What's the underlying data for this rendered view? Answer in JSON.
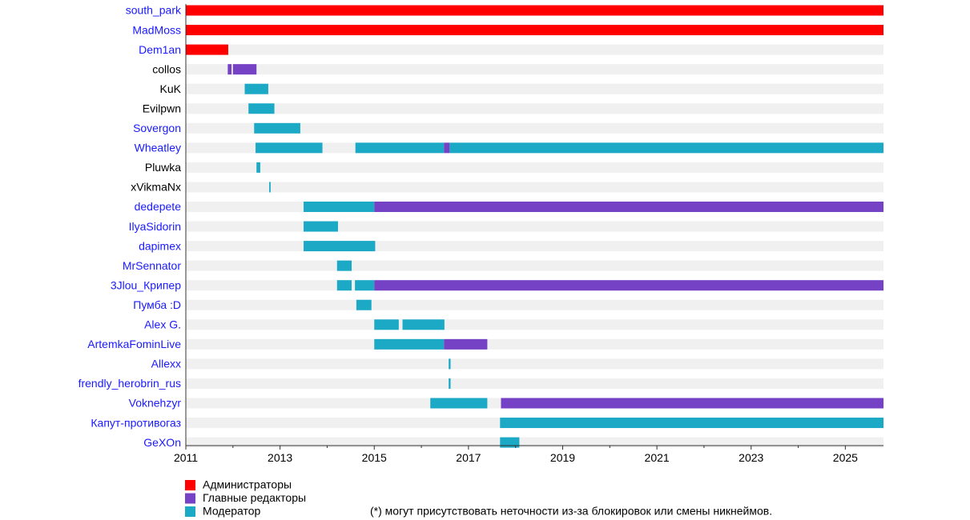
{
  "chart_data": {
    "type": "timeline",
    "xlim": [
      2011,
      2025.81
    ],
    "x_ticks": [
      "2011",
      "2013",
      "2015",
      "2017",
      "2019",
      "2021",
      "2023",
      "2025"
    ],
    "categories_colors": {
      "admin": "#ff0000",
      "chief_editor": "#7542c6",
      "moderator": "#1ba9c6"
    },
    "label_colors": {
      "link": "#1a1aff",
      "plain": "#000000"
    },
    "legend": [
      {
        "key": "admin",
        "label": "Администраторы"
      },
      {
        "key": "chief_editor",
        "label": "Главные редакторы"
      },
      {
        "key": "moderator",
        "label": "Модератор"
      }
    ],
    "footnote": "(*) могут присутствовать неточности из-за блокировок или смены никнеймов.",
    "rows": [
      {
        "name": "south_park",
        "link": true,
        "segments": [
          [
            "admin",
            2011.0,
            2025.81
          ]
        ]
      },
      {
        "name": "MadMoss",
        "link": true,
        "segments": [
          [
            "admin",
            2011.0,
            2025.81
          ]
        ]
      },
      {
        "name": "Dem1an",
        "link": true,
        "segments": [
          [
            "admin",
            2011.0,
            2011.9
          ]
        ]
      },
      {
        "name": "collos",
        "link": false,
        "segments": [
          [
            "chief_editor",
            2011.89,
            2011.97
          ],
          [
            "chief_editor",
            2012.0,
            2012.5
          ]
        ]
      },
      {
        "name": "KuK",
        "link": false,
        "segments": [
          [
            "moderator",
            2012.25,
            2012.75
          ]
        ]
      },
      {
        "name": "Evilpwn",
        "link": false,
        "segments": [
          [
            "moderator",
            2012.33,
            2012.88
          ]
        ]
      },
      {
        "name": "Sovergon",
        "link": true,
        "segments": [
          [
            "moderator",
            2012.45,
            2013.43
          ]
        ]
      },
      {
        "name": "Wheatley",
        "link": true,
        "segments": [
          [
            "moderator",
            2012.48,
            2013.9
          ],
          [
            "moderator",
            2014.6,
            2016.48
          ],
          [
            "chief_editor",
            2016.48,
            2016.6
          ],
          [
            "moderator",
            2016.6,
            2025.81
          ]
        ]
      },
      {
        "name": "Pluwka",
        "link": false,
        "segments": [
          [
            "moderator",
            2012.5,
            2012.58
          ]
        ]
      },
      {
        "name": "xVikmaNx",
        "link": false,
        "segments": [
          [
            "moderator",
            2012.77,
            2012.8
          ]
        ]
      },
      {
        "name": "dedepete",
        "link": true,
        "segments": [
          [
            "moderator",
            2013.5,
            2015.0
          ],
          [
            "chief_editor",
            2015.0,
            2025.81
          ]
        ]
      },
      {
        "name": "IlyaSidorin",
        "link": true,
        "segments": [
          [
            "moderator",
            2013.5,
            2014.23
          ]
        ]
      },
      {
        "name": "dapimex",
        "link": true,
        "segments": [
          [
            "moderator",
            2013.5,
            2015.02
          ]
        ]
      },
      {
        "name": "MrSennator",
        "link": true,
        "segments": [
          [
            "moderator",
            2014.21,
            2014.52
          ]
        ]
      },
      {
        "name": "3Jlou_Крипер",
        "link": true,
        "segments": [
          [
            "moderator",
            2014.21,
            2014.52
          ],
          [
            "moderator",
            2014.59,
            2015.0
          ],
          [
            "chief_editor",
            2015.0,
            2025.81
          ]
        ]
      },
      {
        "name": "Пумба :D",
        "link": true,
        "segments": [
          [
            "moderator",
            2014.62,
            2014.94
          ]
        ]
      },
      {
        "name": "Alex G.",
        "link": true,
        "segments": [
          [
            "moderator",
            2015.0,
            2015.52
          ],
          [
            "moderator",
            2015.6,
            2016.49
          ]
        ]
      },
      {
        "name": "ArtemkaFominLive",
        "link": true,
        "segments": [
          [
            "moderator",
            2015.0,
            2016.48
          ],
          [
            "chief_editor",
            2016.48,
            2017.4
          ]
        ]
      },
      {
        "name": "Allexx",
        "link": true,
        "segments": [
          [
            "moderator",
            2016.58,
            2016.62
          ]
        ]
      },
      {
        "name": "frendly_herobrin_rus",
        "link": true,
        "segments": [
          [
            "moderator",
            2016.58,
            2016.62
          ]
        ]
      },
      {
        "name": "Voknehzyr",
        "link": true,
        "segments": [
          [
            "moderator",
            2016.19,
            2017.4
          ],
          [
            "chief_editor",
            2017.69,
            2025.81
          ]
        ]
      },
      {
        "name": "Капут-противогаз",
        "link": true,
        "segments": [
          [
            "moderator",
            2017.67,
            2025.81
          ]
        ]
      },
      {
        "name": "GeXOn",
        "link": true,
        "segments": [
          [
            "moderator",
            2017.67,
            2018.08
          ]
        ]
      }
    ]
  }
}
